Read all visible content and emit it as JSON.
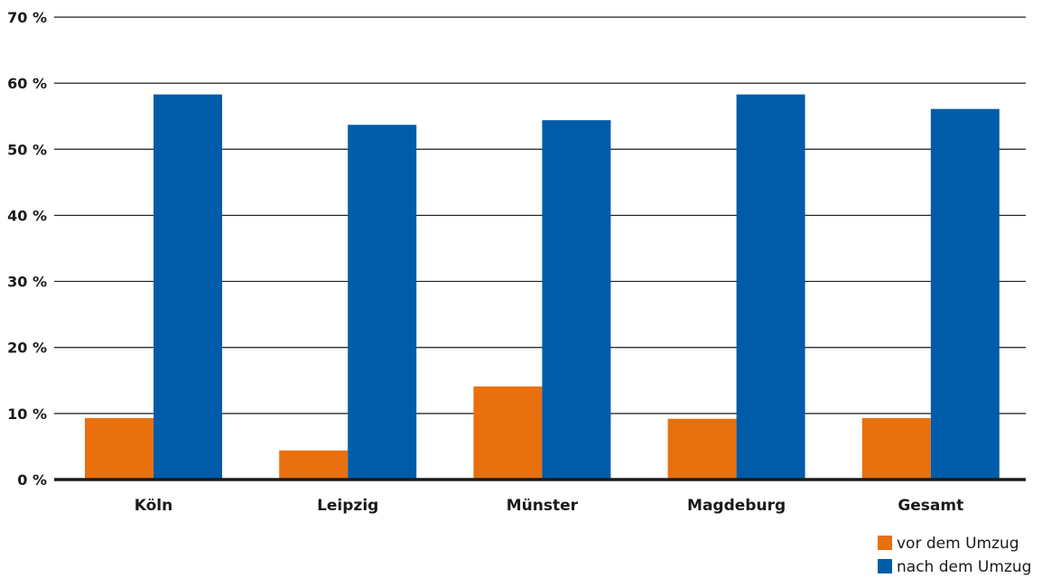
{
  "chart_data": {
    "type": "bar",
    "title": "",
    "xlabel": "",
    "ylabel": "",
    "categories": [
      "Köln",
      "Leipzig",
      "Münster",
      "Magdeburg",
      "Gesamt"
    ],
    "series": [
      {
        "name": "vor dem Umzug",
        "color": "#e8700e",
        "values": [
          9.3,
          4.4,
          14.1,
          9.2,
          9.3
        ]
      },
      {
        "name": "nach dem Umzug",
        "color": "#005ca9",
        "values": [
          58.3,
          53.7,
          54.4,
          58.3,
          56.1
        ]
      }
    ],
    "ylim": [
      0,
      70
    ],
    "yticks": [
      0,
      10,
      20,
      30,
      40,
      50,
      60,
      70
    ],
    "ytick_labels": [
      "0 %",
      "10 %",
      "20 %",
      "30 %",
      "40 %",
      "50 %",
      "60 %",
      "70 %"
    ],
    "grid": true,
    "legend_position": "bottom-right"
  }
}
